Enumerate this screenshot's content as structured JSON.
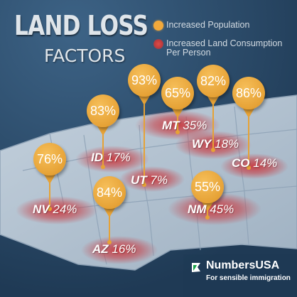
{
  "title": {
    "main": "LAND LOSS",
    "sub": "FACTORS"
  },
  "legend": [
    {
      "label": "Increased Population",
      "color": "#f2a93b"
    },
    {
      "label": "Increased Land Consumption Per Person",
      "color": "#c83e3f"
    }
  ],
  "states": [
    {
      "abbr": "NV",
      "population": "76%",
      "land_per_person": "24%"
    },
    {
      "abbr": "ID",
      "population": "83%",
      "land_per_person": "17%"
    },
    {
      "abbr": "UT",
      "population": "93%",
      "land_per_person": "7%"
    },
    {
      "abbr": "MT",
      "population": "65%",
      "land_per_person": "35%"
    },
    {
      "abbr": "WY",
      "population": "82%",
      "land_per_person": "18%"
    },
    {
      "abbr": "CO",
      "population": "86%",
      "land_per_person": "14%"
    },
    {
      "abbr": "AZ",
      "population": "84%",
      "land_per_person": "16%"
    },
    {
      "abbr": "NM",
      "population": "55%",
      "land_per_person": "45%"
    }
  ],
  "logo": {
    "name": "NumbersUSA",
    "tagline": "For sensible immigration"
  },
  "colors": {
    "background": "#2f4f6c",
    "map_fill": "#b9c7d4",
    "pin": "#e6a236",
    "glow": "#c83e3f"
  }
}
